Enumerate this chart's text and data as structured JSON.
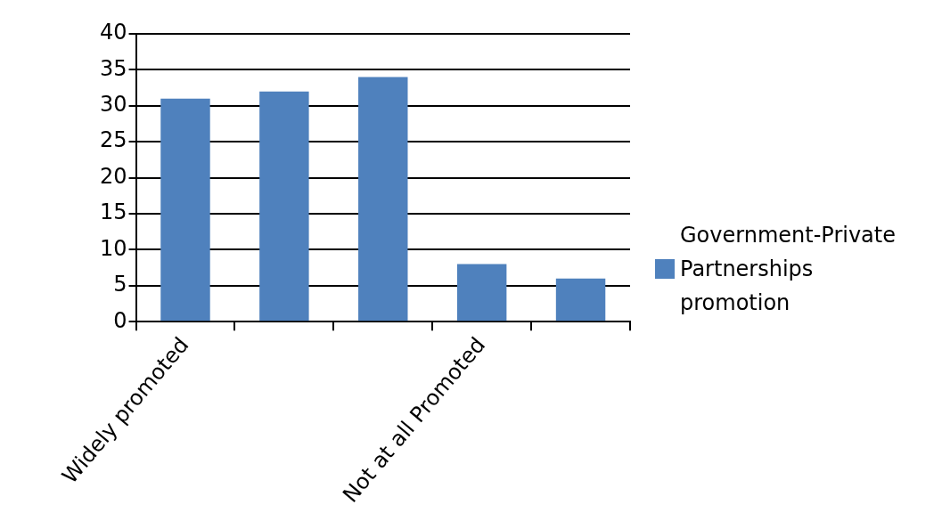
{
  "chart_data": {
    "type": "bar",
    "categories": [
      "Widely promoted",
      null,
      null,
      "Not at all Promoted",
      null
    ],
    "series": [
      {
        "name": "Government-Private Partnerships promotion",
        "color": "#4f81bd",
        "values": [
          31,
          32,
          34,
          8,
          6
        ]
      }
    ],
    "ylim": [
      0,
      40
    ],
    "yticks": [
      0,
      5,
      10,
      15,
      20,
      25,
      30,
      35,
      40
    ],
    "grid": "y",
    "legend": "right"
  }
}
